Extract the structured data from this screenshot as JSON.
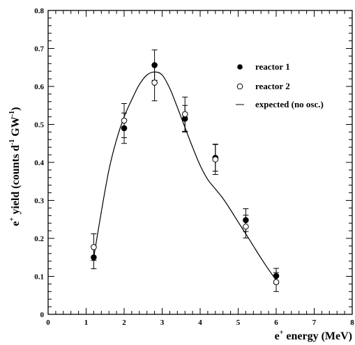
{
  "chart_data": {
    "type": "scatter",
    "title": "",
    "xlabel": {
      "base": "e",
      "sup": "+",
      "rest": " energy (MeV)"
    },
    "ylabel": {
      "p1": "e",
      "s1": "+",
      "p2": " yield (counts d",
      "s2": "-1",
      "p3": " GW",
      "s3": "-1",
      "p4": ")"
    },
    "xlim": [
      0,
      8
    ],
    "ylim": [
      0,
      0.8
    ],
    "xticks": [
      "0",
      "1",
      "2",
      "3",
      "4",
      "5",
      "6",
      "7",
      "8"
    ],
    "yticks": [
      "0",
      "0.1",
      "0.2",
      "0.3",
      "0.4",
      "0.5",
      "0.6",
      "0.7",
      "0.8"
    ],
    "legend_position": "top-right",
    "series": [
      {
        "name": "reactor 1",
        "marker": "filled-circle",
        "color": "#000000",
        "points": [
          {
            "x": 1.2,
            "y": 0.15,
            "err": 0.03
          },
          {
            "x": 2.0,
            "y": 0.49,
            "err": 0.04
          },
          {
            "x": 2.8,
            "y": 0.656,
            "err": 0.04
          },
          {
            "x": 3.6,
            "y": 0.515,
            "err": 0.035
          },
          {
            "x": 4.4,
            "y": 0.412,
            "err": 0.035
          },
          {
            "x": 5.2,
            "y": 0.248,
            "err": 0.03
          },
          {
            "x": 6.0,
            "y": 0.101,
            "err": 0.02
          }
        ]
      },
      {
        "name": "reactor 2",
        "marker": "open-circle",
        "color": "#000000",
        "points": [
          {
            "x": 1.2,
            "y": 0.177,
            "err": 0.035
          },
          {
            "x": 2.0,
            "y": 0.51,
            "err": 0.045
          },
          {
            "x": 2.8,
            "y": 0.61,
            "err": 0.048
          },
          {
            "x": 3.6,
            "y": 0.527,
            "err": 0.045
          },
          {
            "x": 4.4,
            "y": 0.408,
            "err": 0.04
          },
          {
            "x": 5.2,
            "y": 0.231,
            "err": 0.03
          },
          {
            "x": 6.0,
            "y": 0.085,
            "err": 0.025
          }
        ]
      },
      {
        "name": "expected (no osc.)",
        "marker": "line",
        "color": "#000000",
        "x": [
          1.2,
          1.4,
          1.6,
          1.8,
          2.0,
          2.2,
          2.4,
          2.6,
          2.8,
          3.0,
          3.2,
          3.4,
          3.6,
          3.8,
          4.0,
          4.2,
          4.4,
          4.6,
          4.8,
          5.0,
          5.2,
          5.4,
          5.6,
          5.8,
          6.0
        ],
        "y": [
          0.15,
          0.27,
          0.38,
          0.46,
          0.52,
          0.565,
          0.605,
          0.63,
          0.638,
          0.63,
          0.595,
          0.545,
          0.492,
          0.44,
          0.392,
          0.355,
          0.33,
          0.305,
          0.275,
          0.243,
          0.212,
          0.18,
          0.148,
          0.118,
          0.09
        ]
      }
    ]
  }
}
